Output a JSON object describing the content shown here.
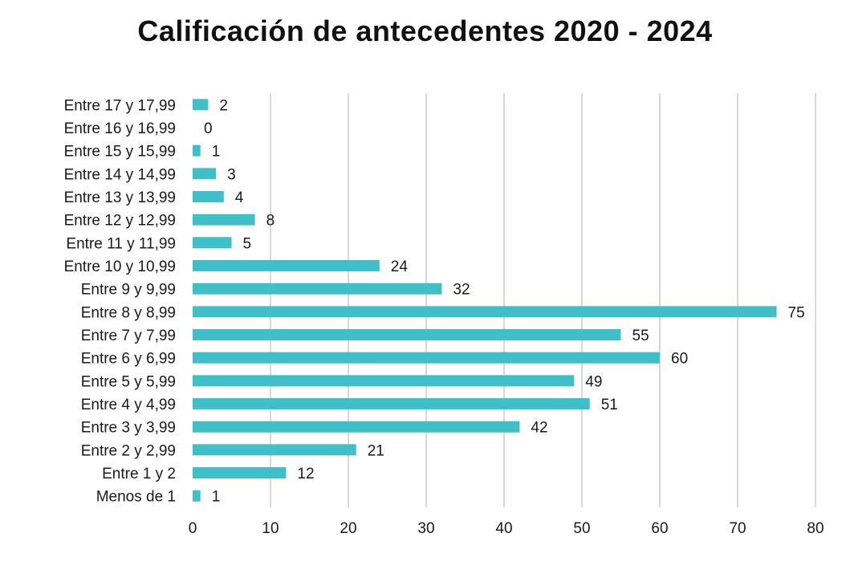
{
  "chart_data": {
    "type": "bar",
    "orientation": "horizontal",
    "title": "Calificación de antecedentes 2020 - 2024",
    "xlabel": "",
    "ylabel": "",
    "xlim": [
      0,
      80
    ],
    "xticks": [
      "0",
      "10",
      "20",
      "30",
      "40",
      "50",
      "60",
      "70",
      "80"
    ],
    "grid": true,
    "legend": "none",
    "bar_color": "#3fbfc8",
    "categories": [
      "Entre 17 y 17,99",
      "Entre 16 y 16,99",
      "Entre 15 y 15,99",
      "Entre 14 y 14,99",
      "Entre 13 y 13,99",
      "Entre 12 y 12,99",
      "Entre 11 y 11,99",
      "Entre 10 y 10,99",
      "Entre 9 y 9,99",
      "Entre 8 y 8,99",
      "Entre 7 y 7,99",
      "Entre 6 y 6,99",
      "Entre 5 y 5,99",
      "Entre 4 y 4,99",
      "Entre 3 y 3,99",
      "Entre 2 y 2,99",
      "Entre 1 y 2",
      "Menos de 1"
    ],
    "values": [
      2,
      0,
      1,
      3,
      4,
      8,
      5,
      24,
      32,
      75,
      55,
      60,
      49,
      51,
      42,
      21,
      12,
      1
    ]
  }
}
